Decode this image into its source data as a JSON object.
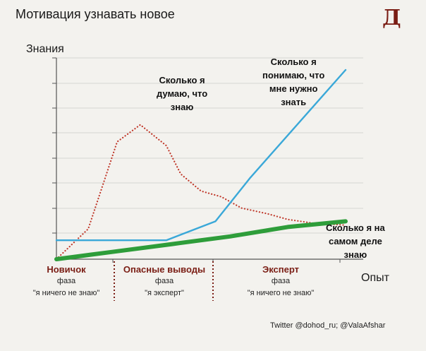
{
  "title": "Мотивация узнавать новое",
  "logo_letter": "Д",
  "credit": "Twitter @dohod_ru; @ValaAfshar",
  "colors": {
    "background": "#f3f2ee",
    "brand": "#7a1d14",
    "blue": "#3aa8d8",
    "red": "#c0392b",
    "green": "#2e9d3a"
  },
  "chart_data": {
    "type": "line",
    "ylabel": "Знания",
    "xlabel": "Опыт",
    "ylim": [
      0,
      100
    ],
    "xlim": [
      0,
      100
    ],
    "grid": "horizontal",
    "series": [
      {
        "name": "Сколько я думаю, что знаю",
        "style": "dotted",
        "color": "#c0392b",
        "x": [
          0,
          11,
          21,
          29,
          38,
          43,
          50,
          57,
          64,
          73,
          80,
          89,
          100
        ],
        "y": [
          0,
          16,
          62,
          71,
          60,
          45,
          36,
          33,
          27,
          24,
          21,
          19,
          18
        ]
      },
      {
        "name": "Сколько я понимаю, что мне нужно знать",
        "style": "solid",
        "color": "#3aa8d8",
        "x": [
          0,
          38,
          55,
          67,
          100
        ],
        "y": [
          10,
          10,
          20,
          43,
          100
        ]
      },
      {
        "name": "Сколько я на самом деле знаю",
        "style": "solid-thick",
        "color": "#2e9d3a",
        "x": [
          0,
          10,
          20,
          40,
          60,
          80,
          100
        ],
        "y": [
          0,
          2,
          4,
          8,
          12,
          17,
          20
        ]
      }
    ],
    "annotations": [
      {
        "id": "think",
        "lines": [
          "Сколько я",
          "думаю, что",
          "знаю"
        ]
      },
      {
        "id": "need",
        "lines": [
          "Сколько я",
          "понимаю, что",
          "мне нужно",
          "знать"
        ]
      },
      {
        "id": "actual",
        "lines": [
          "Сколько я на",
          "самом деле",
          "знаю"
        ]
      }
    ],
    "phases": [
      {
        "name": "Новичок",
        "sub1": "фаза",
        "sub2": "\"я ничего не знаю\""
      },
      {
        "name": "Опасные выводы",
        "sub1": "фаза",
        "sub2": "\"я эксперт\""
      },
      {
        "name": "Эксперт",
        "sub1": "фаза",
        "sub2": "\"я ничего не знаю\""
      }
    ]
  }
}
